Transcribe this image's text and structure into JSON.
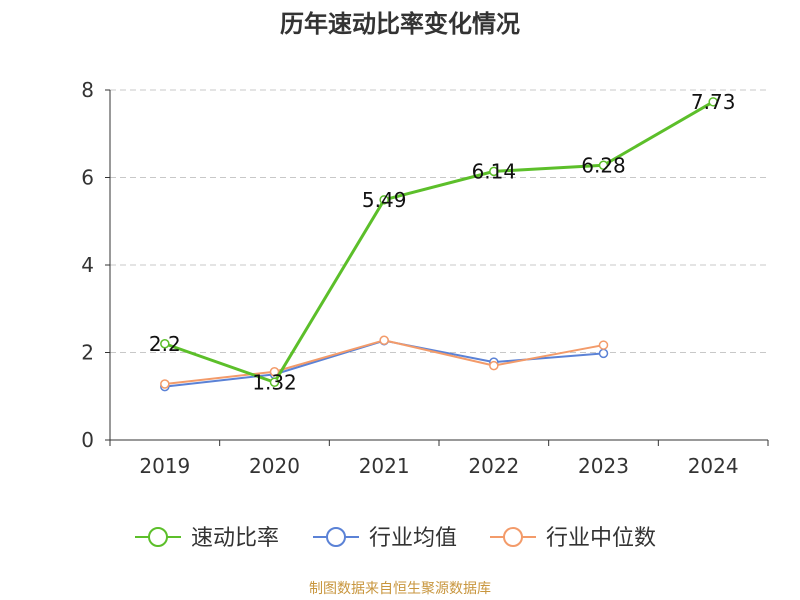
{
  "chart_data": {
    "type": "line",
    "title": "历年速动比率变化情况",
    "categories": [
      "2019",
      "2020",
      "2021",
      "2022",
      "2023",
      "2024"
    ],
    "ylim": [
      0,
      8
    ],
    "yticks": [
      0,
      2,
      4,
      6,
      8
    ],
    "grid": "horizontal-dashed",
    "legend_position": "bottom",
    "series": [
      {
        "name": "速动比率",
        "color": "#5cbf2a",
        "values": [
          2.2,
          1.32,
          5.49,
          6.14,
          6.28,
          7.73
        ],
        "labels": [
          "2.2",
          "1.32",
          "5.49",
          "6.14",
          "6.28",
          "7.73"
        ]
      },
      {
        "name": "行业均值",
        "color": "#5b82d6",
        "values": [
          1.22,
          1.5,
          2.27,
          1.78,
          1.98,
          null
        ]
      },
      {
        "name": "行业中位数",
        "color": "#f39b6a",
        "values": [
          1.28,
          1.56,
          2.28,
          1.7,
          2.17,
          null
        ]
      }
    ]
  },
  "footer": {
    "source": "制图数据来自恒生聚源数据库"
  }
}
